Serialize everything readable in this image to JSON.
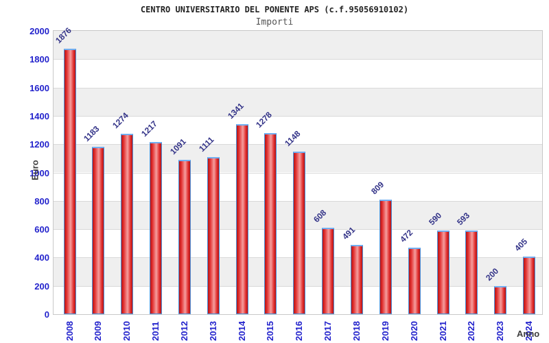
{
  "chart_data": {
    "type": "bar",
    "title": "CENTRO UNIVERSITARIO DEL PONENTE APS (c.f.95056910102)",
    "subtitle": "Importi",
    "xlabel": "Anno",
    "ylabel": "Euro",
    "categories": [
      "2008",
      "2009",
      "2010",
      "2011",
      "2012",
      "2013",
      "2014",
      "2015",
      "2016",
      "2017",
      "2018",
      "2019",
      "2020",
      "2021",
      "2022",
      "2023",
      "2024"
    ],
    "values": [
      1876,
      1183,
      1274,
      1217,
      1091,
      1111,
      1341,
      1278,
      1148,
      608,
      491,
      809,
      472,
      590,
      593,
      200,
      405
    ],
    "ylim": [
      0,
      2000
    ],
    "yticks": [
      0,
      200,
      400,
      600,
      800,
      1000,
      1200,
      1400,
      1600,
      1800,
      2000
    ],
    "legend": "none",
    "grid": "horizontal-bands-alternating",
    "colors": {
      "title": "#222222",
      "subtitle": "#555555",
      "tick_label": "#2222cc",
      "value_label": "#333388",
      "axis_title": "#3d3d3d",
      "band": "#efefef",
      "band_alt": "#ffffff",
      "gridline": "#d9d9d9",
      "plot_border": "#c8c8c8",
      "bar_edge_dark": "#b51414",
      "bar_mid": "#e23030",
      "bar_center_light": "#f59e9e",
      "bar_border": "#4a93dd",
      "bar_border_top": "#71aef0"
    }
  }
}
